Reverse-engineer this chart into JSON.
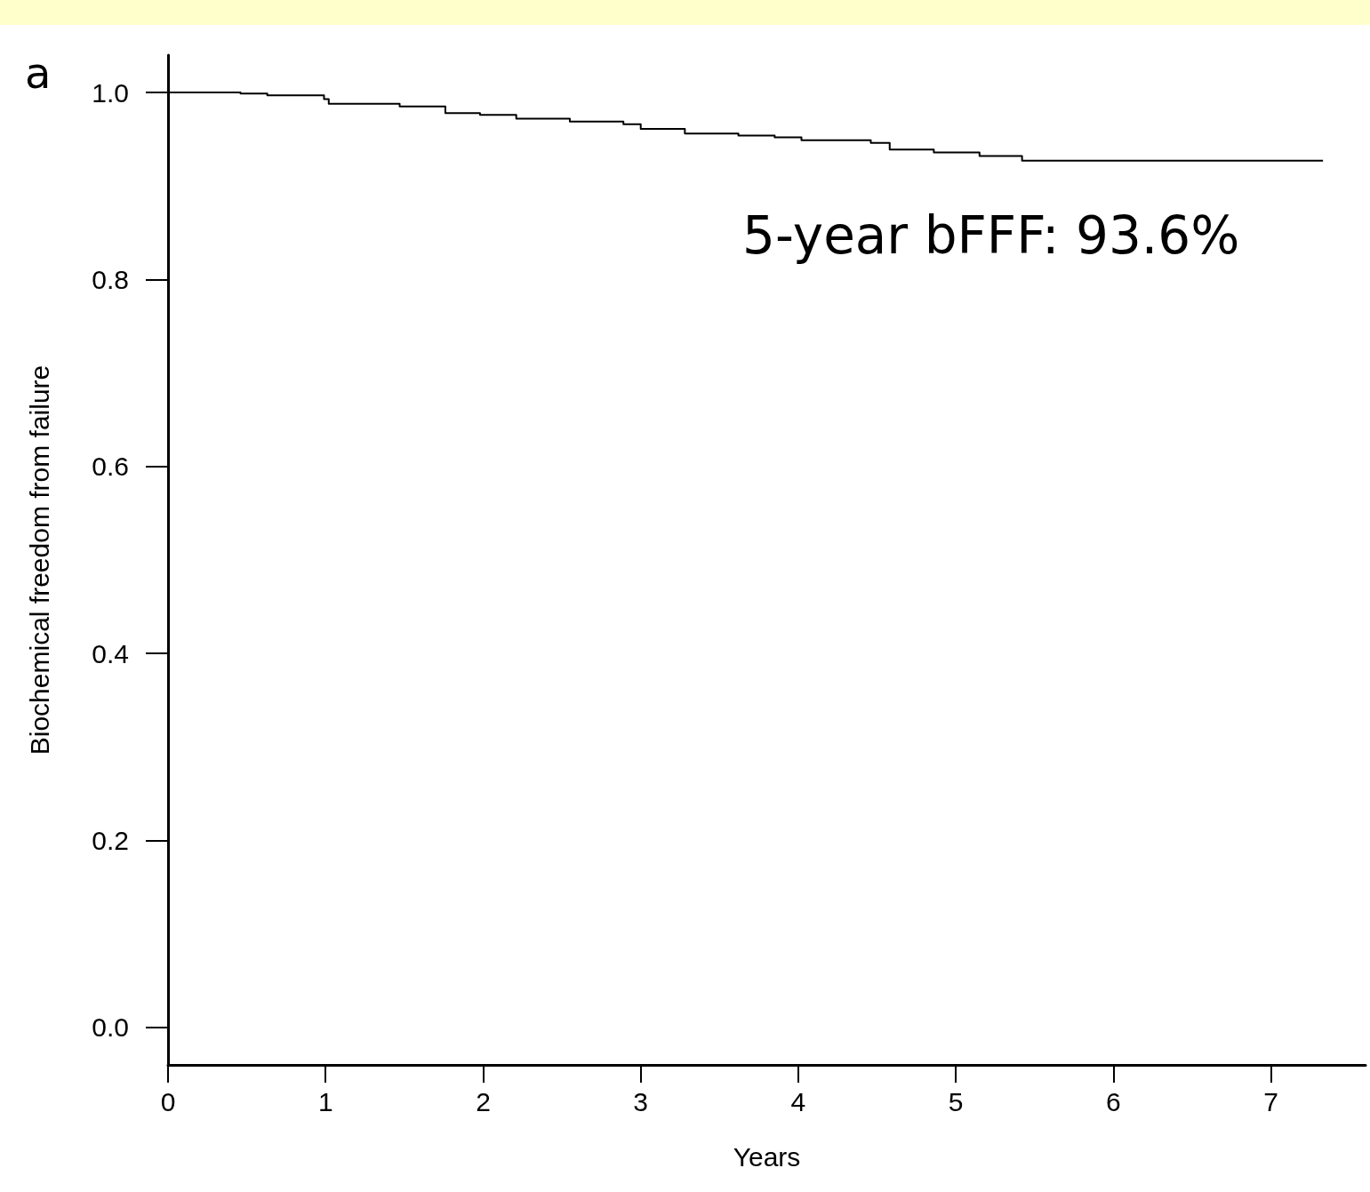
{
  "chart_data": {
    "type": "step",
    "xlabel": "Years",
    "ylabel": "Biochemical freedom from failure",
    "annotations": [
      "a",
      "5-year bFFF: 93.6%"
    ],
    "x": [
      0,
      0.46,
      0.63,
      0.99,
      1.02,
      1.47,
      1.76,
      1.98,
      2.21,
      2.55,
      2.89,
      3.0,
      3.28,
      3.62,
      3.85,
      4.02,
      4.46,
      4.58,
      4.86,
      5.15,
      5.42,
      7.33
    ],
    "values": [
      1.0,
      0.999,
      0.997,
      0.993,
      0.988,
      0.985,
      0.978,
      0.976,
      0.972,
      0.969,
      0.966,
      0.961,
      0.956,
      0.954,
      0.952,
      0.949,
      0.946,
      0.939,
      0.936,
      0.932,
      0.927,
      0.927
    ],
    "color": "#000000",
    "marker": "none",
    "line_style": "solid",
    "grid": false,
    "xlim": [
      0,
      7.6
    ],
    "xticks": [
      0,
      1,
      2,
      3,
      4,
      5,
      6,
      7
    ],
    "ylim": [
      -0.04,
      1.04
    ],
    "yticks": [
      {
        "value": 0,
        "label": "0.0"
      },
      {
        "value": 0.2,
        "label": "0.2"
      },
      {
        "value": 0.4,
        "label": "0.4"
      },
      {
        "value": 0.6,
        "label": "0.6"
      },
      {
        "value": 0.8,
        "label": "0.8"
      },
      {
        "value": 1,
        "label": "1.0"
      }
    ]
  }
}
